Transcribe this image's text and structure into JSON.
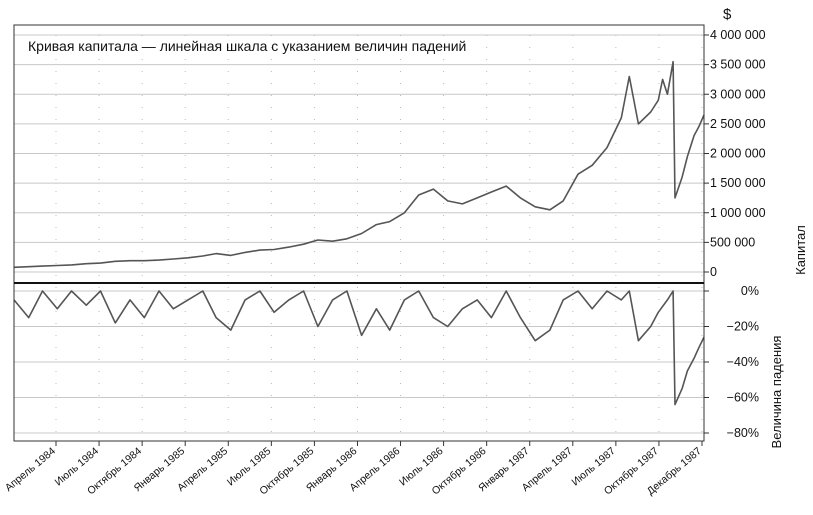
{
  "chart_data": [
    {
      "type": "line",
      "title": "Кривая капитала — линейная шкала с указанием величин падений",
      "ylabel": "Капитал",
      "yunit": "$",
      "ylim": [
        0,
        4000000
      ],
      "yticks": [
        0,
        500000,
        1000000,
        1500000,
        2000000,
        2500000,
        3000000,
        3500000,
        4000000
      ],
      "ytick_labels": [
        "0",
        "500 000",
        "1 000 000",
        "1 500 000",
        "2 000 000",
        "2 500 000",
        "3 000 000",
        "3 500 000",
        "4 000 000"
      ],
      "grid": true,
      "series": [
        {
          "color": "#555555",
          "points": [
            [
              "1984-01-15",
              80000
            ],
            [
              "1984-02-15",
              90000
            ],
            [
              "1984-03-15",
              100000
            ],
            [
              "1984-04-15",
              110000
            ],
            [
              "1984-05-15",
              120000
            ],
            [
              "1984-06-15",
              140000
            ],
            [
              "1984-07-15",
              150000
            ],
            [
              "1984-08-15",
              180000
            ],
            [
              "1984-09-15",
              190000
            ],
            [
              "1984-10-15",
              190000
            ],
            [
              "1984-11-15",
              200000
            ],
            [
              "1984-12-15",
              220000
            ],
            [
              "1985-01-15",
              240000
            ],
            [
              "1985-02-15",
              270000
            ],
            [
              "1985-03-15",
              310000
            ],
            [
              "1985-04-15",
              280000
            ],
            [
              "1985-05-15",
              330000
            ],
            [
              "1985-06-15",
              370000
            ],
            [
              "1985-07-15",
              380000
            ],
            [
              "1985-08-15",
              420000
            ],
            [
              "1985-09-15",
              470000
            ],
            [
              "1985-10-15",
              540000
            ],
            [
              "1985-11-15",
              520000
            ],
            [
              "1985-12-15",
              560000
            ],
            [
              "1986-01-15",
              650000
            ],
            [
              "1986-02-15",
              800000
            ],
            [
              "1986-03-15",
              850000
            ],
            [
              "1986-04-15",
              1000000
            ],
            [
              "1986-05-15",
              1300000
            ],
            [
              "1986-06-15",
              1400000
            ],
            [
              "1986-07-15",
              1200000
            ],
            [
              "1986-08-15",
              1150000
            ],
            [
              "1986-09-15",
              1250000
            ],
            [
              "1986-10-15",
              1350000
            ],
            [
              "1986-11-15",
              1450000
            ],
            [
              "1986-12-15",
              1250000
            ],
            [
              "1987-01-15",
              1100000
            ],
            [
              "1987-02-15",
              1050000
            ],
            [
              "1987-03-15",
              1200000
            ],
            [
              "1987-04-15",
              1650000
            ],
            [
              "1987-05-15",
              1800000
            ],
            [
              "1987-06-15",
              2100000
            ],
            [
              "1987-07-15",
              2600000
            ],
            [
              "1987-08-01",
              3300000
            ],
            [
              "1987-08-20",
              2500000
            ],
            [
              "1987-09-15",
              2700000
            ],
            [
              "1987-10-01",
              2900000
            ],
            [
              "1987-10-10",
              3250000
            ],
            [
              "1987-10-20",
              3000000
            ],
            [
              "1987-11-01",
              3550000
            ],
            [
              "1987-11-05",
              1250000
            ],
            [
              "1987-11-20",
              1600000
            ],
            [
              "1987-12-01",
              1950000
            ],
            [
              "1987-12-15",
              2300000
            ],
            [
              "1987-12-25",
              2450000
            ],
            [
              "1988-01-05",
              2650000
            ]
          ]
        }
      ]
    },
    {
      "type": "line",
      "ylabel": "Величина падения",
      "ylim": [
        -80,
        0
      ],
      "yticks": [
        0,
        -20,
        -40,
        -60,
        -80
      ],
      "ytick_labels": [
        "0%",
        "−20%",
        "−40%",
        "−60%",
        "−80%"
      ],
      "grid": true,
      "x_tick_labels": [
        "Апрель 1984",
        "Июль 1984",
        "Октябрь 1984",
        "Январь 1985",
        "Апрель 1985",
        "Июль 1985",
        "Октябрь 1985",
        "Январь 1986",
        "Апрель 1986",
        "Июль 1986",
        "Октябрь 1986",
        "Январь 1987",
        "Апрель 1987",
        "Июль 1987",
        "Октябрь 1987",
        "Декабрь 1987"
      ],
      "series": [
        {
          "color": "#555555",
          "points": [
            [
              "1984-01-15",
              -5
            ],
            [
              "1984-02-15",
              -15
            ],
            [
              "1984-03-15",
              0
            ],
            [
              "1984-04-15",
              -10
            ],
            [
              "1984-05-15",
              0
            ],
            [
              "1984-06-15",
              -8
            ],
            [
              "1984-07-15",
              0
            ],
            [
              "1984-08-15",
              -18
            ],
            [
              "1984-09-15",
              -5
            ],
            [
              "1984-10-15",
              -15
            ],
            [
              "1984-11-15",
              0
            ],
            [
              "1984-12-15",
              -10
            ],
            [
              "1985-01-15",
              -5
            ],
            [
              "1985-02-15",
              0
            ],
            [
              "1985-03-15",
              -15
            ],
            [
              "1985-04-15",
              -22
            ],
            [
              "1985-05-15",
              -5
            ],
            [
              "1985-06-15",
              0
            ],
            [
              "1985-07-15",
              -12
            ],
            [
              "1985-08-15",
              -5
            ],
            [
              "1985-09-15",
              0
            ],
            [
              "1985-10-15",
              -20
            ],
            [
              "1985-11-15",
              -5
            ],
            [
              "1985-12-15",
              0
            ],
            [
              "1986-01-15",
              -25
            ],
            [
              "1986-02-15",
              -10
            ],
            [
              "1986-03-15",
              -22
            ],
            [
              "1986-04-15",
              -5
            ],
            [
              "1986-05-15",
              0
            ],
            [
              "1986-06-15",
              -15
            ],
            [
              "1986-07-15",
              -20
            ],
            [
              "1986-08-15",
              -10
            ],
            [
              "1986-09-15",
              -5
            ],
            [
              "1986-10-15",
              -15
            ],
            [
              "1986-11-15",
              0
            ],
            [
              "1986-12-15",
              -15
            ],
            [
              "1987-01-15",
              -28
            ],
            [
              "1987-02-15",
              -22
            ],
            [
              "1987-03-15",
              -5
            ],
            [
              "1987-04-15",
              0
            ],
            [
              "1987-05-15",
              -10
            ],
            [
              "1987-06-15",
              0
            ],
            [
              "1987-07-15",
              -5
            ],
            [
              "1987-08-01",
              0
            ],
            [
              "1987-08-20",
              -28
            ],
            [
              "1987-09-15",
              -20
            ],
            [
              "1987-10-01",
              -12
            ],
            [
              "1987-10-20",
              -5
            ],
            [
              "1987-11-01",
              0
            ],
            [
              "1987-11-05",
              -64
            ],
            [
              "1987-11-20",
              -55
            ],
            [
              "1987-12-01",
              -45
            ],
            [
              "1987-12-15",
              -38
            ],
            [
              "1987-12-25",
              -32
            ],
            [
              "1988-01-05",
              -26
            ]
          ]
        }
      ]
    }
  ]
}
